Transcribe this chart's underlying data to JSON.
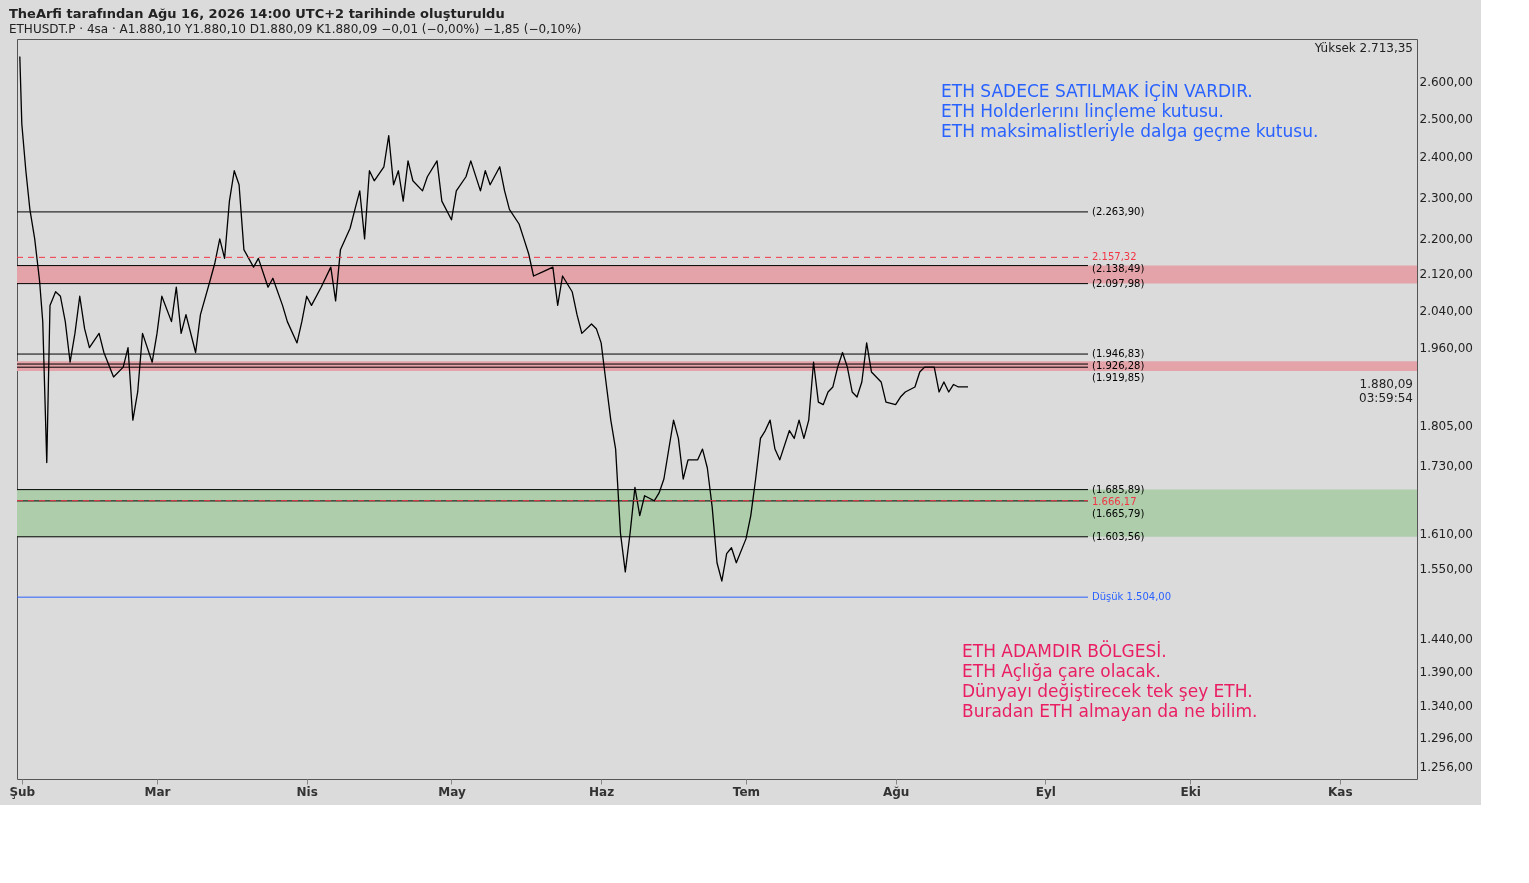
{
  "chart_data": {
    "type": "line",
    "title": "TheArfi tarafından Ağu 16, 2026 14:00 UTC+2 tarihinde oluşturuldu",
    "subtitle": "ETHUSDT.P · 4sa · A1.880,10 Y1.880,10 D1.880,09 K1.880,09 −0,01 (−0,00%) −1,85 (−0,10%)",
    "x": [
      "2026-01-31T14:00",
      "2026-02-01",
      "2026-02-01T20:00",
      "2026-02-02T16:00",
      "2026-02-03T16:00",
      "2026-02-04T16:00",
      "2026-02-05T08:00",
      "2026-02-06T04:00",
      "2026-02-06T20:00",
      "2026-02-08",
      "2026-02-09",
      "2026-02-10",
      "2026-02-11",
      "2026-02-12",
      "2026-02-13",
      "2026-02-14",
      "2026-02-15",
      "2026-02-17",
      "2026-02-18",
      "2026-02-20",
      "2026-02-22",
      "2026-02-23",
      "2026-02-24",
      "2026-02-25",
      "2026-02-26",
      "2026-02-28",
      "2026-03-01",
      "2026-03-02",
      "2026-03-04",
      "2026-03-05",
      "2026-03-06",
      "2026-03-07",
      "2026-03-09",
      "2026-03-10",
      "2026-03-12",
      "2026-03-13",
      "2026-03-14",
      "2026-03-15",
      "2026-03-16",
      "2026-03-17",
      "2026-03-18",
      "2026-03-19",
      "2026-03-21",
      "2026-03-22",
      "2026-03-24",
      "2026-03-25",
      "2026-03-27",
      "2026-03-28",
      "2026-03-30",
      "2026-03-31",
      "2026-04-01",
      "2026-04-02",
      "2026-04-04",
      "2026-04-06",
      "2026-04-07",
      "2026-04-08",
      "2026-04-10",
      "2026-04-11",
      "2026-04-12",
      "2026-04-13",
      "2026-04-14",
      "2026-04-15",
      "2026-04-17",
      "2026-04-18",
      "2026-04-19",
      "2026-04-20",
      "2026-04-21",
      "2026-04-22",
      "2026-04-23",
      "2026-04-25",
      "2026-04-26",
      "2026-04-28",
      "2026-04-29",
      "2026-05-01",
      "2026-05-02",
      "2026-05-04",
      "2026-05-05",
      "2026-05-07",
      "2026-05-08",
      "2026-05-09",
      "2026-05-11",
      "2026-05-12",
      "2026-05-13",
      "2026-05-15",
      "2026-05-16",
      "2026-05-17",
      "2026-05-18",
      "2026-05-20",
      "2026-05-22",
      "2026-05-23",
      "2026-05-24",
      "2026-05-26",
      "2026-05-27",
      "2026-05-28",
      "2026-05-30",
      "2026-05-31",
      "2026-06-01",
      "2026-06-02",
      "2026-06-03",
      "2026-06-04",
      "2026-06-05",
      "2026-06-06",
      "2026-06-07",
      "2026-06-08",
      "2026-06-09",
      "2026-06-10",
      "2026-06-12",
      "2026-06-13",
      "2026-06-14",
      "2026-06-16",
      "2026-06-17",
      "2026-06-18",
      "2026-06-19",
      "2026-06-21",
      "2026-06-22",
      "2026-06-23",
      "2026-06-24",
      "2026-06-25",
      "2026-06-26",
      "2026-06-27",
      "2026-06-28",
      "2026-06-29",
      "2026-07-01",
      "2026-07-02",
      "2026-07-03",
      "2026-07-04",
      "2026-07-05",
      "2026-07-06",
      "2026-07-07",
      "2026-07-08",
      "2026-07-10",
      "2026-07-11",
      "2026-07-12",
      "2026-07-13",
      "2026-07-14",
      "2026-07-15",
      "2026-07-16",
      "2026-07-17",
      "2026-07-18",
      "2026-07-19",
      "2026-07-20",
      "2026-07-21",
      "2026-07-22",
      "2026-07-23",
      "2026-07-24",
      "2026-07-25",
      "2026-07-26",
      "2026-07-27",
      "2026-07-28",
      "2026-07-29",
      "2026-07-30",
      "2026-08-01",
      "2026-08-02",
      "2026-08-03",
      "2026-08-05",
      "2026-08-06",
      "2026-08-07",
      "2026-08-08",
      "2026-08-09",
      "2026-08-10",
      "2026-08-11",
      "2026-08-12",
      "2026-08-13",
      "2026-08-14",
      "2026-08-16"
    ],
    "series": [
      {
        "color": "#000000",
        "values": [
          2670,
          2485,
          2365,
          2270,
          2200,
          2105,
          2015,
          1735,
          2050,
          2080,
          2070,
          2015,
          1930,
          1990,
          2070,
          2000,
          1960,
          1990,
          1950,
          1900,
          1920,
          1960,
          1815,
          1870,
          1990,
          1930,
          1990,
          2070,
          2015,
          2090,
          1990,
          2030,
          1950,
          2030,
          2105,
          2145,
          2200,
          2155,
          2290,
          2365,
          2330,
          2175,
          2135,
          2155,
          2090,
          2110,
          2050,
          2015,
          1970,
          2015,
          2070,
          2050,
          2090,
          2135,
          2060,
          2175,
          2225,
          2270,
          2315,
          2200,
          2365,
          2340,
          2375,
          2455,
          2330,
          2365,
          2290,
          2390,
          2340,
          2315,
          2350,
          2390,
          2290,
          2245,
          2315,
          2350,
          2390,
          2315,
          2365,
          2330,
          2375,
          2315,
          2270,
          2235,
          2200,
          2165,
          2115,
          2125,
          2135,
          2050,
          2115,
          2080,
          2030,
          1990,
          2010,
          2000,
          1970,
          1890,
          1815,
          1760,
          1610,
          1545,
          1610,
          1690,
          1640,
          1675,
          1666,
          1680,
          1705,
          1815,
          1780,
          1705,
          1740,
          1740,
          1760,
          1725,
          1655,
          1560,
          1530,
          1575,
          1585,
          1560,
          1600,
          1640,
          1705,
          1780,
          1795,
          1815,
          1760,
          1740,
          1795,
          1780,
          1815,
          1780,
          1815,
          1930,
          1850,
          1845,
          1870,
          1880,
          1920,
          1950,
          1920,
          1870,
          1860,
          1890,
          1970,
          1910,
          1900,
          1890,
          1850,
          1845,
          1860,
          1870,
          1880,
          1910,
          1920,
          1920,
          1920,
          1870,
          1890,
          1870,
          1885,
          1880,
          1880.09
        ]
      }
    ],
    "xlim": [
      "2026-01-31",
      "2026-11-17"
    ],
    "xticks": [
      {
        "value": "2026-02-01",
        "label": "Şub"
      },
      {
        "value": "2026-03-01",
        "label": "Mar"
      },
      {
        "value": "2026-04-01",
        "label": "Nis"
      },
      {
        "value": "2026-05-01",
        "label": "May"
      },
      {
        "value": "2026-06-01",
        "label": "Haz"
      },
      {
        "value": "2026-07-01",
        "label": "Tem"
      },
      {
        "value": "2026-08-01",
        "label": "Ağu"
      },
      {
        "value": "2026-09-01",
        "label": "Eyl"
      },
      {
        "value": "2026-10-01",
        "label": "Eki"
      },
      {
        "value": "2026-11-01",
        "label": "Kas"
      }
    ],
    "ylim": [
      1240,
      2720
    ],
    "log": true,
    "yticks": [
      {
        "value": 2600,
        "label": "2.600,00"
      },
      {
        "value": 2500,
        "label": "2.500,00"
      },
      {
        "value": 2400,
        "label": "2.400,00"
      },
      {
        "value": 2300,
        "label": "2.300,00"
      },
      {
        "value": 2200,
        "label": "2.200,00"
      },
      {
        "value": 2120,
        "label": "2.120,00"
      },
      {
        "value": 2040,
        "label": "2.040,00"
      },
      {
        "value": 1960,
        "label": "1.960,00"
      },
      {
        "value": 1805,
        "label": "1.805,00"
      },
      {
        "value": 1730,
        "label": "1.730,00"
      },
      {
        "value": 1610,
        "label": "1.610,00"
      },
      {
        "value": 1550,
        "label": "1.550,00"
      },
      {
        "value": 1440,
        "label": "1.440,00"
      },
      {
        "value": 1390,
        "label": "1.390,00"
      },
      {
        "value": 1340,
        "label": "1.340,00"
      },
      {
        "value": 1296,
        "label": "1.296,00"
      },
      {
        "value": 1256,
        "label": "1.256,00"
      }
    ],
    "grid": false,
    "bands": [
      {
        "axis": "y",
        "from": 2097.98,
        "to": 2138.49,
        "color": "#e3a3a8"
      },
      {
        "axis": "y",
        "from": 1912,
        "to": 1932,
        "color": "#e3a3a8"
      },
      {
        "axis": "y",
        "from": 1603.56,
        "to": 1685.89,
        "color": "#adcdab"
      }
    ],
    "ref_lines": [
      {
        "axis": "y",
        "value": 2263.9,
        "label": "(2.263,90)",
        "color": "#000000"
      },
      {
        "axis": "y",
        "value": 2138.49,
        "label": "(2.138,49)",
        "color": "#000000"
      },
      {
        "axis": "y",
        "value": 2097.98,
        "label": "(2.097,98)",
        "color": "#000000"
      },
      {
        "axis": "y",
        "value": 1946.83,
        "label": "(1.946,83)",
        "color": "#000000"
      },
      {
        "axis": "y",
        "value": 1926.28,
        "label": "(1.926,28)",
        "color": "#000000"
      },
      {
        "axis": "y",
        "value": 1919.85,
        "label": "(1.919,85)",
        "color": "#000000"
      },
      {
        "axis": "y",
        "value": 1685.89,
        "label": "(1.685,89)",
        "color": "#000000"
      },
      {
        "axis": "y",
        "value": 1665.79,
        "label": "(1.665,79)",
        "color": "#000000"
      },
      {
        "axis": "y",
        "value": 1603.56,
        "label": "(1.603,56)",
        "color": "#000000"
      },
      {
        "axis": "y",
        "value": 1504,
        "label": "Düşük 1.504,00",
        "color": "#2962ff"
      },
      {
        "axis": "y",
        "value": 2157.32,
        "label": "2.157,32",
        "color": "#f23645",
        "line_style": "dashed"
      },
      {
        "axis": "y",
        "value": 1666.17,
        "label": "1.666,17",
        "color": "#f23645",
        "line_style": "dashed"
      }
    ],
    "annotations": [
      "ETH SADECE SATILMAK İÇİN VARDIR.\nETH Holderlerını linçleme kutusu.\nETH maksimalistleriyle dalga geçme kutusu.",
      "ETH ADAMDIR BÖLGESİ.\nETH Açlığa çare olacak.\nDünyayı değiştirecek tek şey ETH.\nBuradan ETH almayan da ne bilim.",
      "Yüksek 2.713,35",
      "1.880,09",
      "03:59:54"
    ]
  }
}
